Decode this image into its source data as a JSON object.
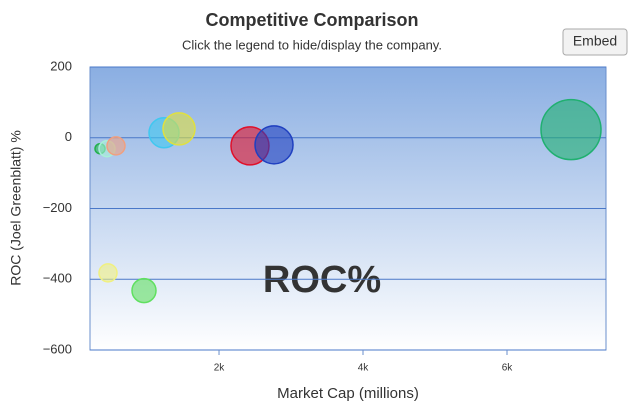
{
  "chart_data": {
    "type": "bubble",
    "title": "Competitive Comparison",
    "subtitle": "Click the legend to hide/display the company.",
    "button": "Embed",
    "watermark": "ROC%",
    "x_label": "Market Cap (millions)",
    "y_label": "ROC (Joel Greenblatt) %",
    "xlim": [
      208,
      7375
    ],
    "xticks": [
      {
        "value": 2000,
        "label": "2k"
      },
      {
        "value": 4000,
        "label": "4k"
      },
      {
        "value": 6000,
        "label": "6k"
      }
    ],
    "ylim": [
      -600,
      200
    ],
    "yticks": [
      {
        "value": -600,
        "label": "−600"
      },
      {
        "value": -400,
        "label": "−400"
      },
      {
        "value": -200,
        "label": "−200"
      },
      0,
      200
    ],
    "grid": true,
    "points": [
      {
        "x": 347,
        "y": -31,
        "size": 5,
        "color": "#22b14c"
      },
      {
        "x": 444,
        "y": -31,
        "size": 8,
        "color": "#a8f0d8"
      },
      {
        "x": 569,
        "y": -23,
        "size": 9,
        "color": "#f0a080"
      },
      {
        "x": 1236,
        "y": 14,
        "size": 15,
        "color": "#40c8f0"
      },
      {
        "x": 1444,
        "y": 25,
        "size": 16,
        "color": "#e0e040"
      },
      {
        "x": 2430,
        "y": -23,
        "size": 19,
        "color": "#e0102a"
      },
      {
        "x": 2764,
        "y": -20,
        "size": 19,
        "color": "#2040c0"
      },
      {
        "x": 6889,
        "y": 23,
        "size": 30,
        "color": "#20b070"
      },
      {
        "x": 458,
        "y": -382,
        "size": 9,
        "color": "#f0f080"
      },
      {
        "x": 958,
        "y": -432,
        "size": 12,
        "color": "#60e060"
      }
    ]
  }
}
